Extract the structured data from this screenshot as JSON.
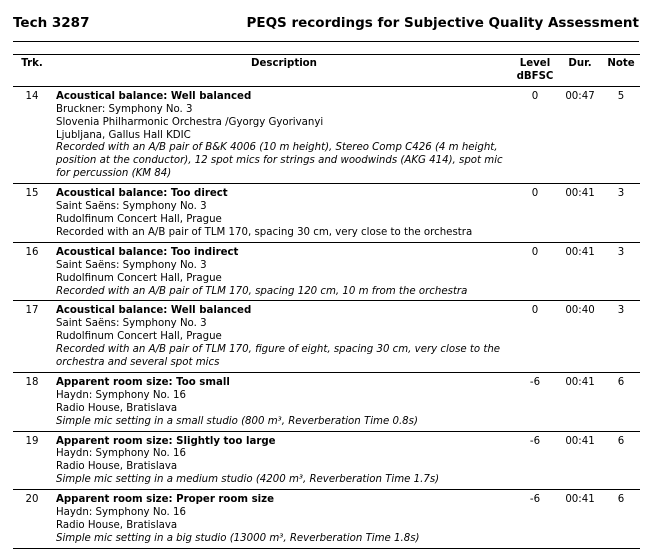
{
  "header": {
    "left": "Tech 3287",
    "right": "PEQS recordings for Subjective Quality Assessment"
  },
  "columns": {
    "trk": "Trk.",
    "description": "Description",
    "level": "Level",
    "level_unit": "dBFSC",
    "dur": "Dur.",
    "note": "Note"
  },
  "rows": [
    {
      "trk": "14",
      "level": "0",
      "dur": "00:47",
      "note": "5",
      "lines": [
        {
          "text": "Acoustical balance: Well balanced",
          "style": "b"
        },
        {
          "text": "Bruckner: Symphony No. 3",
          "style": ""
        },
        {
          "text": "Slovenia Philharmonic Orchestra /Gyorgy Gyorivanyi",
          "style": ""
        },
        {
          "text": "Ljubljana, Gallus Hall KDIC",
          "style": ""
        },
        {
          "text": "Recorded with an A/B pair of B&K 4006 (10 m height), Stereo Comp C426 (4 m height,",
          "style": "i"
        },
        {
          "text": "position at the conductor), 12 spot mics for strings and woodwinds (AKG 414), spot mic",
          "style": "i"
        },
        {
          "text": "for percussion (KM 84)",
          "style": "i"
        }
      ]
    },
    {
      "trk": "15",
      "level": "0",
      "dur": "00:41",
      "note": "3",
      "lines": [
        {
          "text": "Acoustical balance: Too direct",
          "style": "b"
        },
        {
          "text": "Saint Saëns: Symphony No. 3",
          "style": ""
        },
        {
          "text": "Rudolfinum Concert Hall, Prague",
          "style": ""
        },
        {
          "text": "Recorded with an A/B pair of TLM 170, spacing 30 cm, very close to the orchestra",
          "style": ""
        }
      ]
    },
    {
      "trk": "16",
      "level": "0",
      "dur": "00:41",
      "note": "3",
      "lines": [
        {
          "text": "Acoustical balance: Too indirect",
          "style": "b"
        },
        {
          "text": "Saint Saëns: Symphony No. 3",
          "style": ""
        },
        {
          "text": "Rudolfinum Concert Hall, Prague",
          "style": ""
        },
        {
          "text": "Recorded with an A/B pair of TLM 170, spacing 120 cm, 10 m from the orchestra",
          "style": "i"
        }
      ]
    },
    {
      "trk": "17",
      "level": "0",
      "dur": "00:40",
      "note": "3",
      "lines": [
        {
          "text": "Acoustical balance: Well balanced",
          "style": "b"
        },
        {
          "text": "Saint Saëns: Symphony No. 3",
          "style": ""
        },
        {
          "text": "Rudolfinum Concert Hall, Prague",
          "style": ""
        },
        {
          "text": "Recorded with an A/B pair of TLM 170, figure of eight, spacing 30 cm, very close to the",
          "style": "i"
        },
        {
          "text": "orchestra and several spot mics",
          "style": "i"
        }
      ]
    },
    {
      "trk": "18",
      "level": "-6",
      "dur": "00:41",
      "note": "6",
      "lines": [
        {
          "text": "Apparent room size: Too small",
          "style": "b"
        },
        {
          "text": "Haydn: Symphony No. 16",
          "style": ""
        },
        {
          "text": "Radio House, Bratislava",
          "style": ""
        },
        {
          "text": "Simple mic setting in a small studio (800 m³, Reverberation Time 0.8s)",
          "style": "i"
        }
      ]
    },
    {
      "trk": "19",
      "level": "-6",
      "dur": "00:41",
      "note": "6",
      "lines": [
        {
          "text": "Apparent room size: Slightly too large",
          "style": "b"
        },
        {
          "text": "Haydn: Symphony No. 16",
          "style": ""
        },
        {
          "text": "Radio House, Bratislava",
          "style": ""
        },
        {
          "text": "Simple mic setting in a medium studio (4200 m³, Reverberation Time 1.7s)",
          "style": "i"
        }
      ]
    },
    {
      "trk": "20",
      "level": "-6",
      "dur": "00:41",
      "note": "6",
      "lines": [
        {
          "text": "Apparent room size: Proper room size",
          "style": "b"
        },
        {
          "text": "Haydn: Symphony No. 16",
          "style": ""
        },
        {
          "text": "Radio House, Bratislava",
          "style": ""
        },
        {
          "text": "Simple mic setting in a big studio (13000 m³, Reverberation Time 1.8s)",
          "style": "i"
        }
      ]
    }
  ]
}
